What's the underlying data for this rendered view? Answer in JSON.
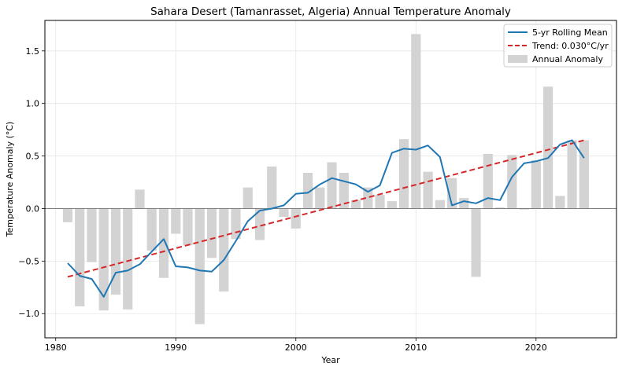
{
  "chart_data": {
    "type": "bar+line",
    "title": "Sahara Desert (Tamanrasset, Algeria) Annual Temperature Anomaly",
    "xlabel": "Year",
    "ylabel": "Temperature Anomaly (°C)",
    "xlim": [
      1979.1,
      2026.7
    ],
    "ylim": [
      -1.23,
      1.79
    ],
    "xticks": [
      1980,
      1990,
      2000,
      2010,
      2020
    ],
    "xtick_labels": [
      "1980",
      "1990",
      "2000",
      "2010",
      "2020"
    ],
    "yticks": [
      -1.0,
      -0.5,
      0.0,
      0.5,
      1.0,
      1.5
    ],
    "ytick_labels": [
      "−1.0",
      "−0.5",
      "0.0",
      "0.5",
      "1.0",
      "1.5"
    ],
    "grid": true,
    "legend_position": "top-right",
    "colors": {
      "rolling_mean": "#1f77b4",
      "trend": "#d62728",
      "bars": "#d3d3d3",
      "zero_line": "#808080"
    },
    "legend": [
      {
        "label": "5-yr Rolling Mean",
        "kind": "line",
        "color": "#1f77b4"
      },
      {
        "label": "Trend: 0.030°C/yr",
        "kind": "dashed",
        "color": "#d62728"
      },
      {
        "label": "Annual Anomaly",
        "kind": "patch",
        "color": "#d3d3d3"
      }
    ],
    "x": [
      1981,
      1982,
      1983,
      1984,
      1985,
      1986,
      1987,
      1988,
      1989,
      1990,
      1991,
      1992,
      1993,
      1994,
      1995,
      1996,
      1997,
      1998,
      1999,
      2000,
      2001,
      2002,
      2003,
      2004,
      2005,
      2006,
      2007,
      2008,
      2009,
      2010,
      2011,
      2012,
      2013,
      2014,
      2015,
      2016,
      2017,
      2018,
      2019,
      2020,
      2021,
      2022,
      2023,
      2024
    ],
    "series": [
      {
        "name": "Annual Anomaly",
        "type": "bar",
        "values": [
          -0.13,
          -0.93,
          -0.51,
          -0.97,
          -0.82,
          -0.96,
          0.18,
          -0.4,
          -0.66,
          -0.24,
          -0.35,
          -1.1,
          -0.47,
          -0.79,
          -0.29,
          0.2,
          -0.3,
          0.4,
          -0.08,
          -0.19,
          0.34,
          0.2,
          0.44,
          0.34,
          0.08,
          0.2,
          0.13,
          0.07,
          0.66,
          1.66,
          0.35,
          0.08,
          0.29,
          0.1,
          -0.65,
          0.52,
          0.01,
          0.51,
          -0.01,
          0.46,
          1.16,
          0.12,
          0.65,
          0.65
        ]
      },
      {
        "name": "5-yr Rolling Mean",
        "type": "line",
        "values": [
          -0.52,
          -0.64,
          -0.67,
          -0.84,
          -0.61,
          -0.59,
          -0.53,
          -0.41,
          -0.29,
          -0.55,
          -0.56,
          -0.59,
          -0.6,
          -0.49,
          -0.31,
          -0.12,
          -0.02,
          0.0,
          0.03,
          0.14,
          0.15,
          0.23,
          0.29,
          0.26,
          0.23,
          0.16,
          0.22,
          0.53,
          0.57,
          0.56,
          0.6,
          0.49,
          0.03,
          0.07,
          0.05,
          0.1,
          0.08,
          0.3,
          0.43,
          0.45,
          0.48,
          0.61,
          0.65,
          0.48
        ]
      },
      {
        "name": "Trend: 0.030°C/yr",
        "type": "line-dashed",
        "x": [
          1981,
          2024
        ],
        "values": [
          -0.65,
          0.65
        ]
      }
    ]
  }
}
